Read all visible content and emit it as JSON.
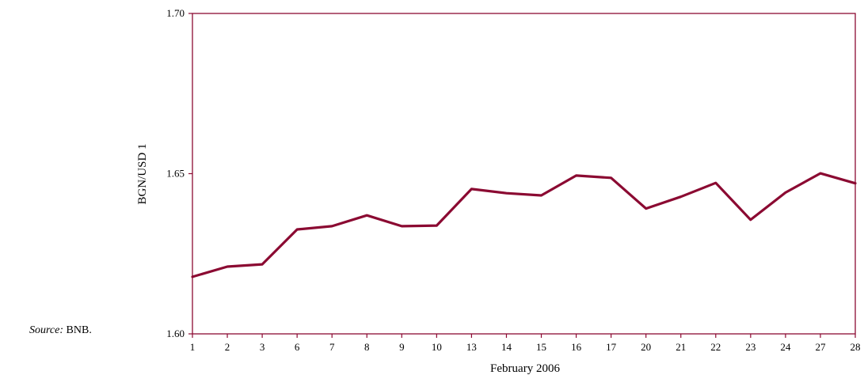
{
  "source_note": {
    "label": "Source:",
    "value": "BNB."
  },
  "chart_data": {
    "type": "line",
    "xlabel": "February 2006",
    "ylabel": "BGN/USD 1",
    "ylim": [
      1.6,
      1.7
    ],
    "yticks": [
      "1.60",
      "1.65",
      "1.70"
    ],
    "grid": false,
    "categories": [
      "1",
      "2",
      "3",
      "6",
      "7",
      "8",
      "9",
      "10",
      "13",
      "14",
      "15",
      "16",
      "17",
      "20",
      "21",
      "22",
      "23",
      "24",
      "27",
      "28"
    ],
    "series": [
      {
        "values": [
          1.6178,
          1.621,
          1.6217,
          1.6326,
          1.6336,
          1.637,
          1.6336,
          1.6338,
          1.6452,
          1.6439,
          1.6432,
          1.6494,
          1.6487,
          1.6391,
          1.6428,
          1.6471,
          1.6356,
          1.6441,
          1.6501,
          1.647
        ]
      }
    ],
    "colors": {
      "line": "#8b0a32",
      "frame": "#8b0a32"
    }
  }
}
